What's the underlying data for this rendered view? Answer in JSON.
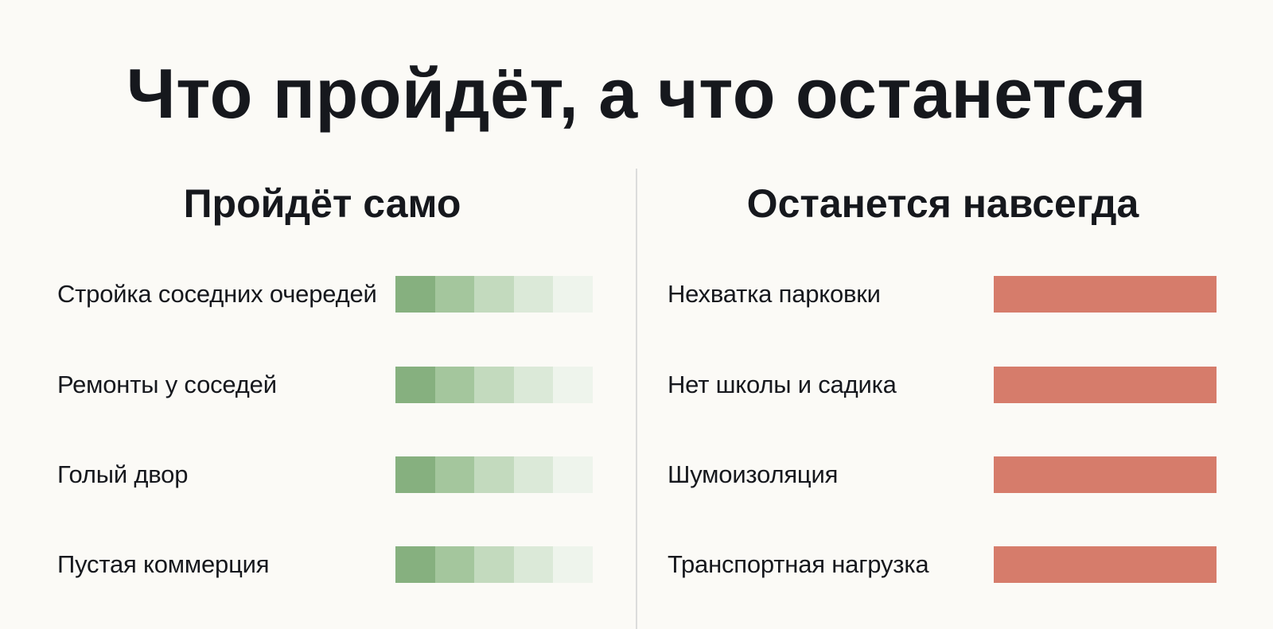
{
  "title": "Что пройдёт, а что останется",
  "left_column": {
    "heading": "Пройдёт само",
    "items": [
      {
        "label": "Стройка соседних очередей"
      },
      {
        "label": "Ремонты у соседей"
      },
      {
        "label": "Голый двор"
      },
      {
        "label": "Пустая коммерция"
      }
    ],
    "bar_segment_colors": [
      "#86b07f",
      "#a4c69d",
      "#c3dabe",
      "#dbe9d8",
      "#eef4ec"
    ]
  },
  "right_column": {
    "heading": "Останется навсегда",
    "items": [
      {
        "label": "Нехватка парковки"
      },
      {
        "label": "Нет школы и садика"
      },
      {
        "label": "Шумоизоляция"
      },
      {
        "label": "Транспортная нагрузка"
      }
    ],
    "bar_color": "#d67c6b"
  }
}
